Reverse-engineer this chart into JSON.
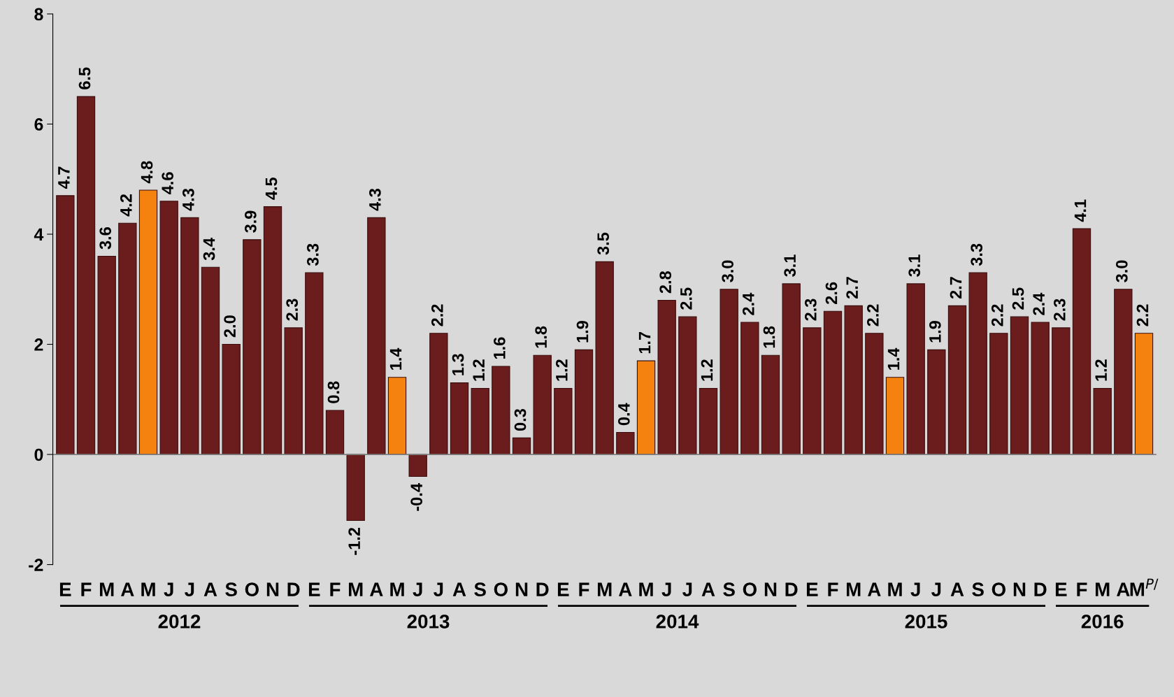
{
  "chart_data": {
    "type": "bar",
    "categories": [
      "E",
      "F",
      "M",
      "A",
      "M",
      "J",
      "J",
      "A",
      "S",
      "O",
      "N",
      "D",
      "E",
      "F",
      "M",
      "A",
      "M",
      "J",
      "J",
      "A",
      "S",
      "O",
      "N",
      "D",
      "E",
      "F",
      "M",
      "A",
      "M",
      "J",
      "J",
      "A",
      "S",
      "O",
      "N",
      "D",
      "E",
      "F",
      "M",
      "A",
      "M",
      "J",
      "J",
      "A",
      "S",
      "O",
      "N",
      "D",
      "E",
      "F",
      "M",
      "A",
      "M$^{P/}$"
    ],
    "values": [
      4.7,
      6.5,
      3.6,
      4.2,
      4.8,
      4.6,
      4.3,
      3.4,
      2.0,
      3.9,
      4.5,
      2.3,
      3.3,
      0.8,
      -1.2,
      4.3,
      1.4,
      -0.4,
      2.2,
      1.3,
      1.2,
      1.6,
      0.3,
      1.8,
      1.2,
      1.9,
      3.5,
      0.4,
      1.7,
      2.8,
      2.5,
      1.2,
      3.0,
      2.4,
      1.8,
      3.1,
      2.3,
      2.6,
      2.7,
      2.2,
      1.4,
      3.1,
      1.9,
      2.7,
      3.3,
      2.2,
      2.5,
      2.4,
      2.3,
      4.1,
      1.2,
      3.0,
      2.2
    ],
    "value_labels": [
      "4.7",
      "6.5",
      "3.6",
      "4.2",
      "4.8",
      "4.6",
      "4.3",
      "3.4",
      "2.0",
      "3.9",
      "4.5",
      "2.3",
      "3.3",
      "0.8",
      "-1.2",
      "4.3",
      "1.4",
      "-0.4",
      "2.2",
      "1.3",
      "1.2",
      "1.6",
      "0.3",
      "1.8",
      "1.2",
      "1.9",
      "3.5",
      "0.4",
      "1.7",
      "2.8",
      "2.5",
      "1.2",
      "3.0",
      "2.4",
      "1.8",
      "3.1",
      "2.3",
      "2.6",
      "2.7",
      "2.2",
      "1.4",
      "3.1",
      "1.9",
      "2.7",
      "3.3",
      "2.2",
      "2.5",
      "2.4",
      "2.3",
      "4.1",
      "1.2",
      "3.0",
      "2.2"
    ],
    "colors": [
      "#6b1c1c",
      "#6b1c1c",
      "#6b1c1c",
      "#6b1c1c",
      "#f5820f",
      "#6b1c1c",
      "#6b1c1c",
      "#6b1c1c",
      "#6b1c1c",
      "#6b1c1c",
      "#6b1c1c",
      "#6b1c1c",
      "#6b1c1c",
      "#6b1c1c",
      "#6b1c1c",
      "#6b1c1c",
      "#f5820f",
      "#6b1c1c",
      "#6b1c1c",
      "#6b1c1c",
      "#6b1c1c",
      "#6b1c1c",
      "#6b1c1c",
      "#6b1c1c",
      "#6b1c1c",
      "#6b1c1c",
      "#6b1c1c",
      "#6b1c1c",
      "#f5820f",
      "#6b1c1c",
      "#6b1c1c",
      "#6b1c1c",
      "#6b1c1c",
      "#6b1c1c",
      "#6b1c1c",
      "#6b1c1c",
      "#6b1c1c",
      "#6b1c1c",
      "#6b1c1c",
      "#6b1c1c",
      "#f5820f",
      "#6b1c1c",
      "#6b1c1c",
      "#6b1c1c",
      "#6b1c1c",
      "#6b1c1c",
      "#6b1c1c",
      "#6b1c1c",
      "#6b1c1c",
      "#6b1c1c",
      "#6b1c1c",
      "#6b1c1c",
      "#f5820f"
    ],
    "ylim": [
      -2,
      8
    ],
    "yticks": [
      -2,
      0,
      2,
      4,
      6,
      8
    ],
    "annotations": [
      "2012",
      "2013",
      "2014",
      "2015",
      "2016"
    ]
  }
}
